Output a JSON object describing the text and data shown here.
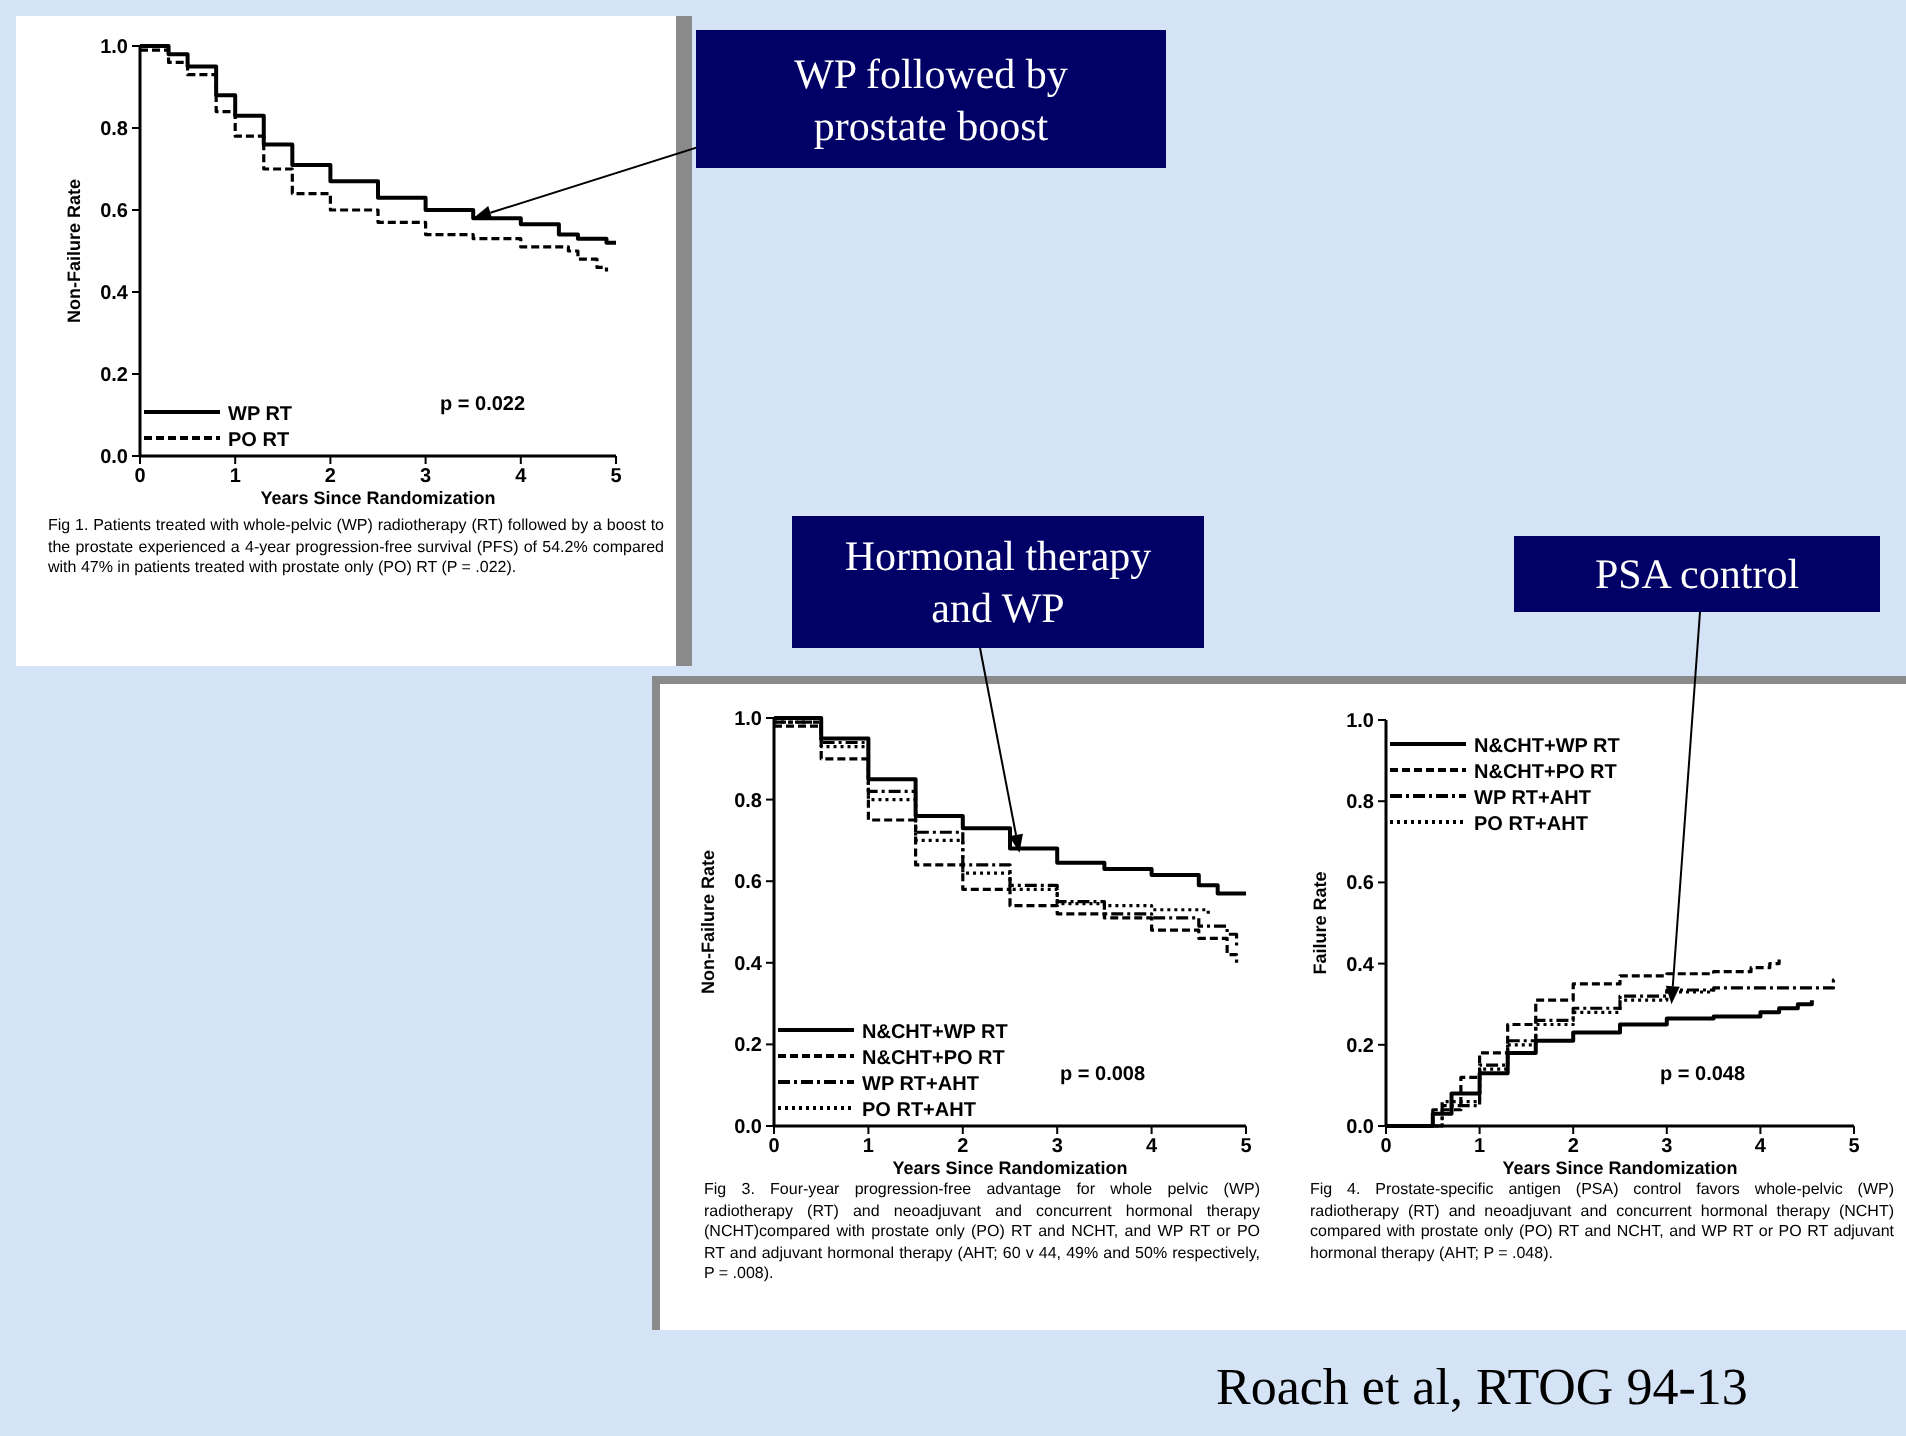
{
  "chart_data": [
    {
      "type": "step",
      "xlabel": "Years Since Randomization",
      "ylabel": "Non-Failure Rate",
      "xlim": [
        0,
        5
      ],
      "ylim": [
        0,
        1
      ],
      "xticks": [
        0,
        1,
        2,
        3,
        4,
        5
      ],
      "yticks": [
        {
          "value": 0,
          "label": "0.0"
        },
        {
          "value": 0.2,
          "label": "0.2"
        },
        {
          "value": 0.4,
          "label": "0.4"
        },
        {
          "value": 0.6,
          "label": "0.6"
        },
        {
          "value": 0.8,
          "label": "0.8"
        },
        {
          "value": 1,
          "label": "1.0"
        }
      ],
      "legend": "bottom left",
      "series": [
        {
          "name": "WP RT",
          "color": "#000000",
          "line_style": "solid",
          "x": [
            0,
            0.3,
            0.5,
            0.8,
            1,
            1.3,
            1.6,
            2,
            2.5,
            3,
            3.5,
            4,
            4.4,
            4.6,
            4.9,
            5
          ],
          "values": [
            1,
            0.98,
            0.95,
            0.88,
            0.83,
            0.76,
            0.71,
            0.67,
            0.63,
            0.6,
            0.58,
            0.565,
            0.54,
            0.53,
            0.52,
            0.52
          ]
        },
        {
          "name": "PO RT",
          "color": "#000000",
          "line_style": "dashed",
          "x": [
            0,
            0.3,
            0.5,
            0.8,
            1,
            1.3,
            1.6,
            2,
            2.5,
            3,
            3.5,
            4,
            4.5,
            4.6,
            4.8,
            4.9
          ],
          "values": [
            0.99,
            0.96,
            0.93,
            0.84,
            0.78,
            0.7,
            0.64,
            0.6,
            0.57,
            0.54,
            0.53,
            0.51,
            0.5,
            0.48,
            0.46,
            0.45
          ]
        }
      ],
      "annotations": [
        "p = 0.022",
        "Fig 1.    Patients treated with whole-pelvic (WP) radiotherapy (RT) followed by a boost to the prostate experienced a 4-year progression-free survival (PFS) of 54.2% compared with 47% in patients treated with prostate only (PO) RT (P = .022).",
        {
          "text": "WP followed by prostate boost",
          "x": 3.5,
          "y": 0.58
        }
      ]
    },
    {
      "type": "step",
      "xlabel": "Years Since Randomization",
      "ylabel": "Non-Failure Rate",
      "xlim": [
        0,
        5
      ],
      "ylim": [
        0,
        1
      ],
      "xticks": [
        0,
        1,
        2,
        3,
        4,
        5
      ],
      "yticks": [
        {
          "value": 0,
          "label": "0.0"
        },
        {
          "value": 0.2,
          "label": "0.2"
        },
        {
          "value": 0.4,
          "label": "0.4"
        },
        {
          "value": 0.6,
          "label": "0.6"
        },
        {
          "value": 0.8,
          "label": "0.8"
        },
        {
          "value": 1,
          "label": "1.0"
        }
      ],
      "legend": "bottom left",
      "series": [
        {
          "name": "N&CHT+WP RT",
          "color": "#000000",
          "line_style": "solid",
          "x": [
            0,
            0.5,
            1,
            1.5,
            2,
            2.5,
            3,
            3.5,
            4,
            4.5,
            4.7,
            5
          ],
          "values": [
            1,
            0.95,
            0.85,
            0.76,
            0.73,
            0.68,
            0.645,
            0.63,
            0.615,
            0.59,
            0.57,
            0.57
          ]
        },
        {
          "name": "N&CHT+PO RT",
          "color": "#000000",
          "line_style": "dashed",
          "x": [
            0,
            0.5,
            1,
            1.5,
            2,
            2.5,
            3,
            3.5,
            4,
            4.5,
            4.8,
            4.9
          ],
          "values": [
            0.98,
            0.9,
            0.75,
            0.64,
            0.58,
            0.54,
            0.52,
            0.51,
            0.48,
            0.46,
            0.42,
            0.4
          ]
        },
        {
          "name": "WP RT+AHT",
          "color": "#000000",
          "line_style": "dashdot",
          "x": [
            0,
            0.5,
            1,
            1.5,
            2,
            2.5,
            3,
            3.5,
            4,
            4.5,
            4.8,
            4.9
          ],
          "values": [
            0.99,
            0.94,
            0.82,
            0.72,
            0.64,
            0.59,
            0.55,
            0.52,
            0.51,
            0.49,
            0.47,
            0.44
          ]
        },
        {
          "name": "PO RT+AHT",
          "color": "#000000",
          "line_style": "dotted",
          "x": [
            0,
            0.5,
            1,
            1.5,
            2,
            2.5,
            3,
            3.5,
            4,
            4.5,
            4.6
          ],
          "values": [
            0.99,
            0.93,
            0.8,
            0.7,
            0.62,
            0.58,
            0.545,
            0.54,
            0.53,
            0.53,
            0.52
          ]
        }
      ],
      "annotations": [
        "p = 0.008",
        "Fig 3.    Four-year progression-free advantage for whole pelvic (WP) radiotherapy (RT) and neoadjuvant and concurrent hormonal therapy (NCHT)compared with prostate only (PO) RT and NCHT, and WP RT or PO RT and adjuvant hormonal therapy (AHT; 60 v 44, 49% and 50% respectively, P = .008).",
        {
          "text": "Hormonal therapy and WP",
          "x": 2.6,
          "y": 0.67
        }
      ]
    },
    {
      "type": "step",
      "xlabel": "Years Since Randomization",
      "ylabel": "Failure Rate",
      "xlim": [
        0,
        5
      ],
      "ylim": [
        0,
        1
      ],
      "xticks": [
        0,
        1,
        2,
        3,
        4,
        5
      ],
      "yticks": [
        {
          "value": 0,
          "label": "0.0"
        },
        {
          "value": 0.2,
          "label": "0.2"
        },
        {
          "value": 0.4,
          "label": "0.4"
        },
        {
          "value": 0.6,
          "label": "0.6"
        },
        {
          "value": 0.8,
          "label": "0.8"
        },
        {
          "value": 1,
          "label": "1.0"
        }
      ],
      "legend": "top left",
      "series": [
        {
          "name": "N&CHT+WP RT",
          "color": "#000000",
          "line_style": "solid",
          "x": [
            0,
            0.4,
            0.5,
            0.7,
            1,
            1.3,
            1.6,
            2,
            2.5,
            3,
            3.5,
            4,
            4.2,
            4.4,
            4.55
          ],
          "values": [
            0,
            0,
            0.03,
            0.08,
            0.13,
            0.18,
            0.21,
            0.23,
            0.25,
            0.265,
            0.27,
            0.28,
            0.29,
            0.3,
            0.31
          ]
        },
        {
          "name": "N&CHT+PO RT",
          "color": "#000000",
          "line_style": "dashed",
          "x": [
            0,
            0.4,
            0.5,
            0.8,
            1,
            1.3,
            1.6,
            2,
            2.5,
            3,
            3.5,
            3.9,
            4.1,
            4.2
          ],
          "values": [
            0,
            0,
            0.04,
            0.12,
            0.18,
            0.25,
            0.31,
            0.35,
            0.37,
            0.375,
            0.38,
            0.39,
            0.4,
            0.41
          ]
        },
        {
          "name": "WP RT+AHT",
          "color": "#000000",
          "line_style": "dashdot",
          "x": [
            0,
            0.45,
            0.6,
            1,
            1.3,
            1.6,
            2,
            2.5,
            3,
            3.5,
            4,
            4.78,
            4.8
          ],
          "values": [
            0,
            0,
            0.05,
            0.15,
            0.21,
            0.26,
            0.29,
            0.32,
            0.335,
            0.34,
            0.34,
            0.36,
            0.36
          ]
        },
        {
          "name": "PO RT+AHT",
          "color": "#000000",
          "line_style": "dotted",
          "x": [
            0,
            0.45,
            0.6,
            1,
            1.3,
            1.6,
            2,
            2.5,
            3,
            3.5
          ],
          "values": [
            0,
            0,
            0.06,
            0.14,
            0.2,
            0.25,
            0.28,
            0.31,
            0.33,
            0.34
          ]
        }
      ],
      "annotations": [
        "p = 0.048",
        "Fig 4.    Prostate-specific antigen (PSA) control favors whole-pelvic (WP) radiotherapy (RT) and neoadjuvant and concurrent hormonal therapy (NCHT) compared with prostate only (PO) RT and NCHT, and WP RT or PO RT adjuvant hormonal therapy (AHT; P = .048).",
        {
          "text": "PSA control",
          "x": 3.05,
          "y": 0.3
        },
        "Roach et al, RTOG 94-13"
      ]
    }
  ]
}
